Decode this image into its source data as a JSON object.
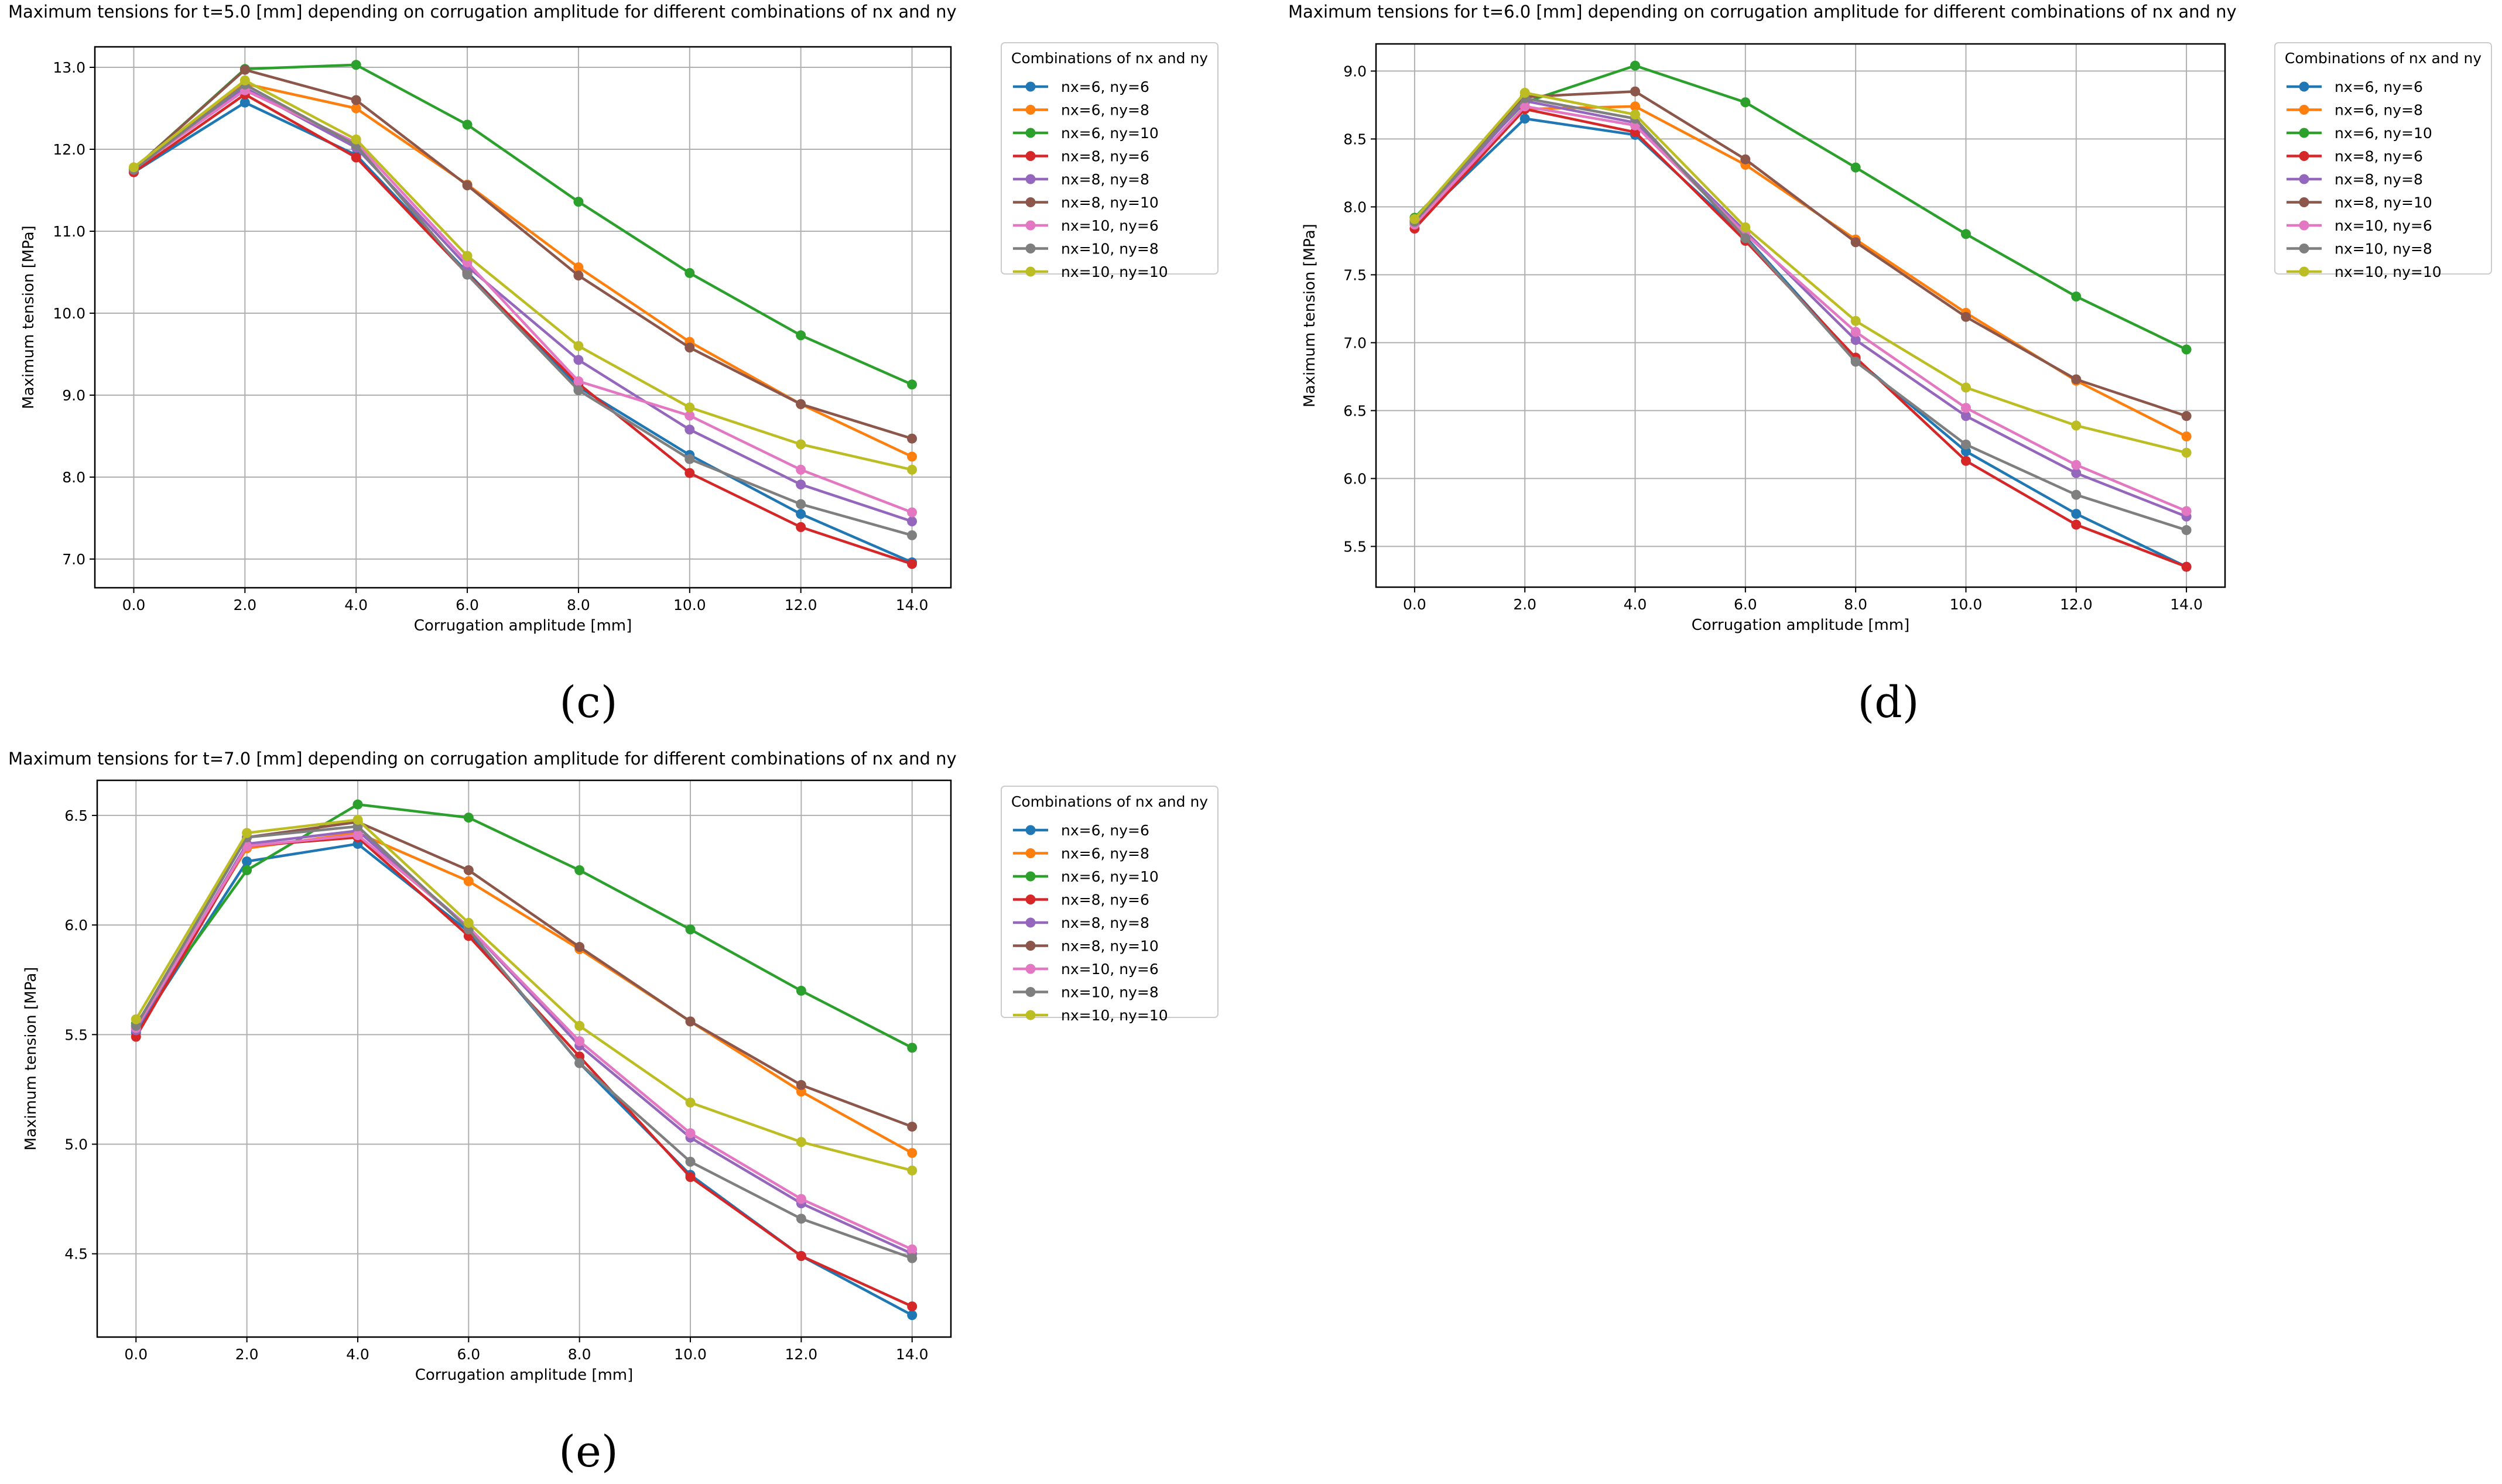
{
  "series_legend_title": "Combinations of nx and ny",
  "series_names": [
    "nx=6, ny=6",
    "nx=6, ny=8",
    "nx=6, ny=10",
    "nx=8, ny=6",
    "nx=8, ny=8",
    "nx=8, ny=10",
    "nx=10, ny=6",
    "nx=10, ny=8",
    "nx=10, ny=10"
  ],
  "series_colors": [
    "#1f77b4",
    "#ff7f0e",
    "#2ca02c",
    "#d62728",
    "#9467bd",
    "#8c564b",
    "#e377c2",
    "#7f7f7f",
    "#bcbd22"
  ],
  "chart_data": [
    {
      "type": "line",
      "panel_label": "(c)",
      "title": "Maximum tensions for t=5.0 [mm] depending on corrugation amplitude for different combinations of nx and ny",
      "xlabel": "Corrugation amplitude [mm]",
      "ylabel": "Maximum tension [MPa]",
      "legend_title": "Combinations of nx and ny",
      "x": [
        0,
        2,
        4,
        6,
        8,
        10,
        12,
        14
      ],
      "x_tick_labels": [
        "0.0",
        "2.0",
        "4.0",
        "6.0",
        "8.0",
        "10.0",
        "12.0",
        "14.0"
      ],
      "xlim": [
        -0.7,
        14.7
      ],
      "ylim": [
        6.65,
        13.25
      ],
      "y_ticks": [
        7.0,
        8.0,
        9.0,
        10.0,
        11.0,
        12.0,
        13.0
      ],
      "y_tick_labels": [
        "7.0",
        "8.0",
        "9.0",
        "10.0",
        "11.0",
        "12.0",
        "13.0"
      ],
      "grid": true,
      "legend_position": "outside-right",
      "series": [
        {
          "name": "nx=6, ny=6",
          "values": [
            11.72,
            12.57,
            11.93,
            10.5,
            9.1,
            8.27,
            7.55,
            6.96
          ]
        },
        {
          "name": "nx=6, ny=8",
          "values": [
            11.76,
            12.8,
            12.5,
            11.57,
            10.56,
            9.65,
            8.89,
            8.25
          ]
        },
        {
          "name": "nx=6, ny=10",
          "values": [
            11.76,
            12.98,
            13.03,
            12.3,
            11.36,
            10.49,
            9.73,
            9.13
          ]
        },
        {
          "name": "nx=8, ny=6",
          "values": [
            11.72,
            12.67,
            11.9,
            10.48,
            9.14,
            8.05,
            7.39,
            6.94
          ]
        },
        {
          "name": "nx=8, ny=8",
          "values": [
            11.75,
            12.75,
            12.02,
            10.57,
            9.43,
            8.58,
            7.91,
            7.46
          ]
        },
        {
          "name": "nx=8, ny=10",
          "values": [
            11.76,
            12.97,
            12.6,
            11.56,
            10.46,
            9.58,
            8.89,
            8.47
          ]
        },
        {
          "name": "nx=10, ny=6",
          "values": [
            11.76,
            12.72,
            12.08,
            10.62,
            9.17,
            8.75,
            8.09,
            7.57
          ]
        },
        {
          "name": "nx=10, ny=8",
          "values": [
            11.75,
            12.79,
            12.05,
            10.47,
            9.06,
            8.22,
            7.67,
            7.29
          ]
        },
        {
          "name": "nx=10, ny=10",
          "values": [
            11.78,
            12.84,
            12.12,
            10.7,
            9.6,
            8.85,
            8.4,
            8.09
          ]
        }
      ]
    },
    {
      "type": "line",
      "panel_label": "(d)",
      "title": "Maximum tensions for t=6.0 [mm] depending on corrugation amplitude for different combinations of nx and ny",
      "xlabel": "Corrugation amplitude [mm]",
      "ylabel": "Maximum tension [MPa]",
      "legend_title": "Combinations of nx and ny",
      "x": [
        0,
        2,
        4,
        6,
        8,
        10,
        12,
        14
      ],
      "x_tick_labels": [
        "0.0",
        "2.0",
        "4.0",
        "6.0",
        "8.0",
        "10.0",
        "12.0",
        "14.0"
      ],
      "xlim": [
        -0.7,
        14.7
      ],
      "ylim": [
        5.2,
        9.2
      ],
      "y_ticks": [
        5.5,
        6.0,
        6.5,
        7.0,
        7.5,
        8.0,
        8.5,
        9.0
      ],
      "y_tick_labels": [
        "5.5",
        "6.0",
        "6.5",
        "7.0",
        "7.5",
        "8.0",
        "8.5",
        "9.0"
      ],
      "grid": true,
      "legend_position": "outside-right",
      "series": [
        {
          "name": "nx=6, ny=6",
          "values": [
            7.87,
            8.65,
            8.53,
            7.78,
            6.88,
            6.2,
            5.74,
            5.35
          ]
        },
        {
          "name": "nx=6, ny=8",
          "values": [
            7.9,
            8.72,
            8.74,
            8.31,
            7.76,
            7.22,
            6.72,
            6.31
          ]
        },
        {
          "name": "nx=6, ny=10",
          "values": [
            7.92,
            8.77,
            9.04,
            8.77,
            8.29,
            7.8,
            7.34,
            6.95
          ]
        },
        {
          "name": "nx=8, ny=6",
          "values": [
            7.84,
            8.72,
            8.55,
            7.75,
            6.89,
            6.13,
            5.66,
            5.35
          ]
        },
        {
          "name": "nx=8, ny=8",
          "values": [
            7.88,
            8.78,
            8.62,
            7.82,
            7.02,
            6.46,
            6.04,
            5.72
          ]
        },
        {
          "name": "nx=8, ny=10",
          "values": [
            7.9,
            8.81,
            8.85,
            8.35,
            7.74,
            7.19,
            6.73,
            6.46
          ]
        },
        {
          "name": "nx=10, ny=6",
          "values": [
            7.87,
            8.74,
            8.6,
            7.8,
            7.08,
            6.52,
            6.1,
            5.76
          ]
        },
        {
          "name": "nx=10, ny=8",
          "values": [
            7.89,
            8.8,
            8.65,
            7.77,
            6.86,
            6.25,
            5.88,
            5.62
          ]
        },
        {
          "name": "nx=10, ny=10",
          "values": [
            7.91,
            8.84,
            8.68,
            7.85,
            7.16,
            6.67,
            6.39,
            6.19
          ]
        }
      ]
    },
    {
      "type": "line",
      "panel_label": "(e)",
      "title": "Maximum tensions for t=7.0 [mm] depending on corrugation amplitude for different combinations of nx and ny",
      "xlabel": "Corrugation amplitude [mm]",
      "ylabel": "Maximum tension [MPa]",
      "legend_title": "Combinations of nx and ny",
      "x": [
        0,
        2,
        4,
        6,
        8,
        10,
        12,
        14
      ],
      "x_tick_labels": [
        "0.0",
        "2.0",
        "4.0",
        "6.0",
        "8.0",
        "10.0",
        "12.0",
        "14.0"
      ],
      "xlim": [
        -0.7,
        14.7
      ],
      "ylim": [
        4.12,
        6.66
      ],
      "y_ticks": [
        4.5,
        5.0,
        5.5,
        6.0,
        6.5
      ],
      "y_tick_labels": [
        "4.5",
        "5.0",
        "5.5",
        "6.0",
        "6.5"
      ],
      "grid": true,
      "legend_position": "outside-right",
      "series": [
        {
          "name": "nx=6, ny=6",
          "values": [
            5.51,
            6.29,
            6.37,
            5.97,
            5.37,
            4.86,
            4.49,
            4.22
          ]
        },
        {
          "name": "nx=6, ny=8",
          "values": [
            5.53,
            6.35,
            6.42,
            6.2,
            5.89,
            5.56,
            5.24,
            4.96
          ]
        },
        {
          "name": "nx=6, ny=10",
          "values": [
            5.55,
            6.25,
            6.55,
            6.49,
            6.25,
            5.98,
            5.7,
            5.44
          ]
        },
        {
          "name": "nx=8, ny=6",
          "values": [
            5.49,
            6.36,
            6.4,
            5.95,
            5.4,
            4.85,
            4.49,
            4.26
          ]
        },
        {
          "name": "nx=8, ny=8",
          "values": [
            5.52,
            6.37,
            6.43,
            5.99,
            5.45,
            5.03,
            4.73,
            4.5
          ]
        },
        {
          "name": "nx=8, ny=10",
          "values": [
            5.54,
            6.4,
            6.47,
            6.25,
            5.9,
            5.56,
            5.27,
            5.08
          ]
        },
        {
          "name": "nx=10, ny=6",
          "values": [
            5.53,
            6.36,
            6.41,
            5.99,
            5.47,
            5.05,
            4.75,
            4.52
          ]
        },
        {
          "name": "nx=10, ny=8",
          "values": [
            5.54,
            6.4,
            6.45,
            5.98,
            5.37,
            4.92,
            4.66,
            4.48
          ]
        },
        {
          "name": "nx=10, ny=10",
          "values": [
            5.57,
            6.42,
            6.48,
            6.01,
            5.54,
            5.19,
            5.01,
            4.88
          ]
        }
      ]
    }
  ]
}
